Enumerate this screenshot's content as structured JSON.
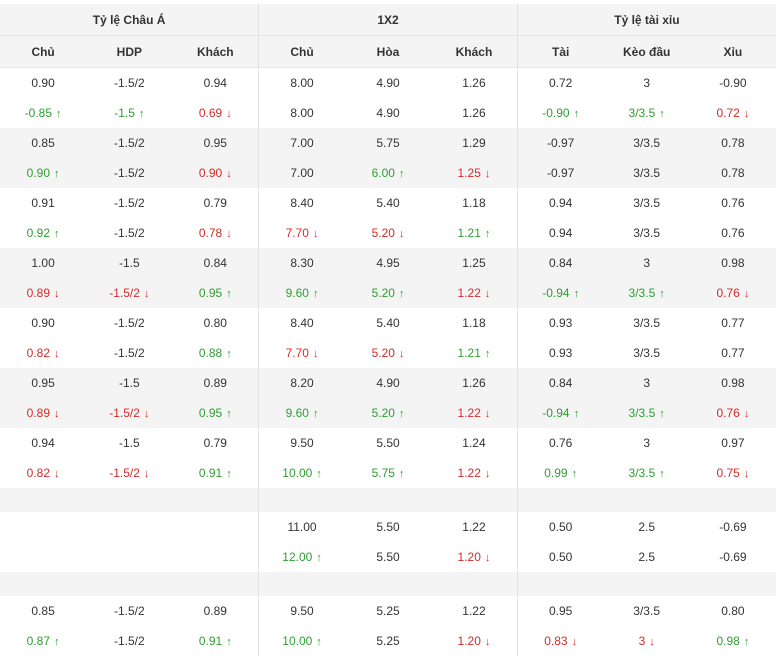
{
  "header": {
    "groups": [
      "Tỷ lệ Châu Á",
      "1X2",
      "Tỷ lệ tài xỉu"
    ],
    "columns": [
      "Chủ",
      "HDP",
      "Khách",
      "Chủ",
      "Hòa",
      "Khách",
      "Tài",
      "Kèo đầu",
      "Xỉu"
    ]
  },
  "colors": {
    "up": "#2e9e32",
    "down": "#d42a2a",
    "shade": "#f4f4f4"
  },
  "rows": [
    {
      "shade": false,
      "cells": [
        {
          "v": "0.90"
        },
        {
          "v": "-1.5/2"
        },
        {
          "v": "0.94"
        },
        {
          "v": "8.00"
        },
        {
          "v": "4.90"
        },
        {
          "v": "1.26"
        },
        {
          "v": "0.72"
        },
        {
          "v": "3"
        },
        {
          "v": "-0.90"
        }
      ]
    },
    {
      "shade": false,
      "cells": [
        {
          "v": "-0.85",
          "t": "up"
        },
        {
          "v": "-1.5",
          "t": "up"
        },
        {
          "v": "0.69",
          "t": "down"
        },
        {
          "v": "8.00"
        },
        {
          "v": "4.90"
        },
        {
          "v": "1.26"
        },
        {
          "v": "-0.90",
          "t": "up"
        },
        {
          "v": "3/3.5",
          "t": "up"
        },
        {
          "v": "0.72",
          "t": "down"
        }
      ]
    },
    {
      "shade": true,
      "cells": [
        {
          "v": "0.85"
        },
        {
          "v": "-1.5/2"
        },
        {
          "v": "0.95"
        },
        {
          "v": "7.00"
        },
        {
          "v": "5.75"
        },
        {
          "v": "1.29"
        },
        {
          "v": "-0.97"
        },
        {
          "v": "3/3.5"
        },
        {
          "v": "0.78"
        }
      ]
    },
    {
      "shade": true,
      "cells": [
        {
          "v": "0.90",
          "t": "up"
        },
        {
          "v": "-1.5/2"
        },
        {
          "v": "0.90",
          "t": "down"
        },
        {
          "v": "7.00"
        },
        {
          "v": "6.00",
          "t": "up"
        },
        {
          "v": "1.25",
          "t": "down"
        },
        {
          "v": "-0.97"
        },
        {
          "v": "3/3.5"
        },
        {
          "v": "0.78"
        }
      ]
    },
    {
      "shade": false,
      "cells": [
        {
          "v": "0.91"
        },
        {
          "v": "-1.5/2"
        },
        {
          "v": "0.79"
        },
        {
          "v": "8.40"
        },
        {
          "v": "5.40"
        },
        {
          "v": "1.18"
        },
        {
          "v": "0.94"
        },
        {
          "v": "3/3.5"
        },
        {
          "v": "0.76"
        }
      ]
    },
    {
      "shade": false,
      "cells": [
        {
          "v": "0.92",
          "t": "up"
        },
        {
          "v": "-1.5/2"
        },
        {
          "v": "0.78",
          "t": "down"
        },
        {
          "v": "7.70",
          "t": "down"
        },
        {
          "v": "5.20",
          "t": "down"
        },
        {
          "v": "1.21",
          "t": "up"
        },
        {
          "v": "0.94"
        },
        {
          "v": "3/3.5"
        },
        {
          "v": "0.76"
        }
      ]
    },
    {
      "shade": true,
      "cells": [
        {
          "v": "1.00"
        },
        {
          "v": "-1.5"
        },
        {
          "v": "0.84"
        },
        {
          "v": "8.30"
        },
        {
          "v": "4.95"
        },
        {
          "v": "1.25"
        },
        {
          "v": "0.84"
        },
        {
          "v": "3"
        },
        {
          "v": "0.98"
        }
      ]
    },
    {
      "shade": true,
      "cells": [
        {
          "v": "0.89",
          "t": "down"
        },
        {
          "v": "-1.5/2",
          "t": "down"
        },
        {
          "v": "0.95",
          "t": "up"
        },
        {
          "v": "9.60",
          "t": "up"
        },
        {
          "v": "5.20",
          "t": "up"
        },
        {
          "v": "1.22",
          "t": "down"
        },
        {
          "v": "-0.94",
          "t": "up"
        },
        {
          "v": "3/3.5",
          "t": "up"
        },
        {
          "v": "0.76",
          "t": "down"
        }
      ]
    },
    {
      "shade": false,
      "cells": [
        {
          "v": "0.90"
        },
        {
          "v": "-1.5/2"
        },
        {
          "v": "0.80"
        },
        {
          "v": "8.40"
        },
        {
          "v": "5.40"
        },
        {
          "v": "1.18"
        },
        {
          "v": "0.93"
        },
        {
          "v": "3/3.5"
        },
        {
          "v": "0.77"
        }
      ]
    },
    {
      "shade": false,
      "cells": [
        {
          "v": "0.82",
          "t": "down"
        },
        {
          "v": "-1.5/2"
        },
        {
          "v": "0.88",
          "t": "up"
        },
        {
          "v": "7.70",
          "t": "down"
        },
        {
          "v": "5.20",
          "t": "down"
        },
        {
          "v": "1.21",
          "t": "up"
        },
        {
          "v": "0.93"
        },
        {
          "v": "3/3.5"
        },
        {
          "v": "0.77"
        }
      ]
    },
    {
      "shade": true,
      "cells": [
        {
          "v": "0.95"
        },
        {
          "v": "-1.5"
        },
        {
          "v": "0.89"
        },
        {
          "v": "8.20"
        },
        {
          "v": "4.90"
        },
        {
          "v": "1.26"
        },
        {
          "v": "0.84"
        },
        {
          "v": "3"
        },
        {
          "v": "0.98"
        }
      ]
    },
    {
      "shade": true,
      "cells": [
        {
          "v": "0.89",
          "t": "down"
        },
        {
          "v": "-1.5/2",
          "t": "down"
        },
        {
          "v": "0.95",
          "t": "up"
        },
        {
          "v": "9.60",
          "t": "up"
        },
        {
          "v": "5.20",
          "t": "up"
        },
        {
          "v": "1.22",
          "t": "down"
        },
        {
          "v": "-0.94",
          "t": "up"
        },
        {
          "v": "3/3.5",
          "t": "up"
        },
        {
          "v": "0.76",
          "t": "down"
        }
      ]
    },
    {
      "shade": false,
      "cells": [
        {
          "v": "0.94"
        },
        {
          "v": "-1.5"
        },
        {
          "v": "0.79"
        },
        {
          "v": "9.50"
        },
        {
          "v": "5.50"
        },
        {
          "v": "1.24"
        },
        {
          "v": "0.76"
        },
        {
          "v": "3"
        },
        {
          "v": "0.97"
        }
      ]
    },
    {
      "shade": false,
      "cells": [
        {
          "v": "0.82",
          "t": "down"
        },
        {
          "v": "-1.5/2",
          "t": "down"
        },
        {
          "v": "0.91",
          "t": "up"
        },
        {
          "v": "10.00",
          "t": "up"
        },
        {
          "v": "5.75",
          "t": "up"
        },
        {
          "v": "1.22",
          "t": "down"
        },
        {
          "v": "0.99",
          "t": "up"
        },
        {
          "v": "3/3.5",
          "t": "up"
        },
        {
          "v": "0.75",
          "t": "down"
        }
      ]
    },
    {
      "spacer": true
    },
    {
      "shade": false,
      "cells": [
        {
          "v": ""
        },
        {
          "v": ""
        },
        {
          "v": ""
        },
        {
          "v": "11.00"
        },
        {
          "v": "5.50"
        },
        {
          "v": "1.22"
        },
        {
          "v": "0.50"
        },
        {
          "v": "2.5"
        },
        {
          "v": "-0.69"
        }
      ]
    },
    {
      "shade": false,
      "cells": [
        {
          "v": ""
        },
        {
          "v": ""
        },
        {
          "v": ""
        },
        {
          "v": "12.00",
          "t": "up"
        },
        {
          "v": "5.50"
        },
        {
          "v": "1.20",
          "t": "down"
        },
        {
          "v": "0.50"
        },
        {
          "v": "2.5"
        },
        {
          "v": "-0.69"
        }
      ]
    },
    {
      "spacer": true
    },
    {
      "shade": false,
      "cells": [
        {
          "v": "0.85"
        },
        {
          "v": "-1.5/2"
        },
        {
          "v": "0.89"
        },
        {
          "v": "9.50"
        },
        {
          "v": "5.25"
        },
        {
          "v": "1.22"
        },
        {
          "v": "0.95"
        },
        {
          "v": "3/3.5"
        },
        {
          "v": "0.80"
        }
      ]
    },
    {
      "shade": false,
      "cells": [
        {
          "v": "0.87",
          "t": "up"
        },
        {
          "v": "-1.5/2"
        },
        {
          "v": "0.91",
          "t": "up"
        },
        {
          "v": "10.00",
          "t": "up"
        },
        {
          "v": "5.25"
        },
        {
          "v": "1.20",
          "t": "down"
        },
        {
          "v": "0.83",
          "t": "down"
        },
        {
          "v": "3",
          "t": "down"
        },
        {
          "v": "0.98",
          "t": "up"
        }
      ]
    }
  ]
}
